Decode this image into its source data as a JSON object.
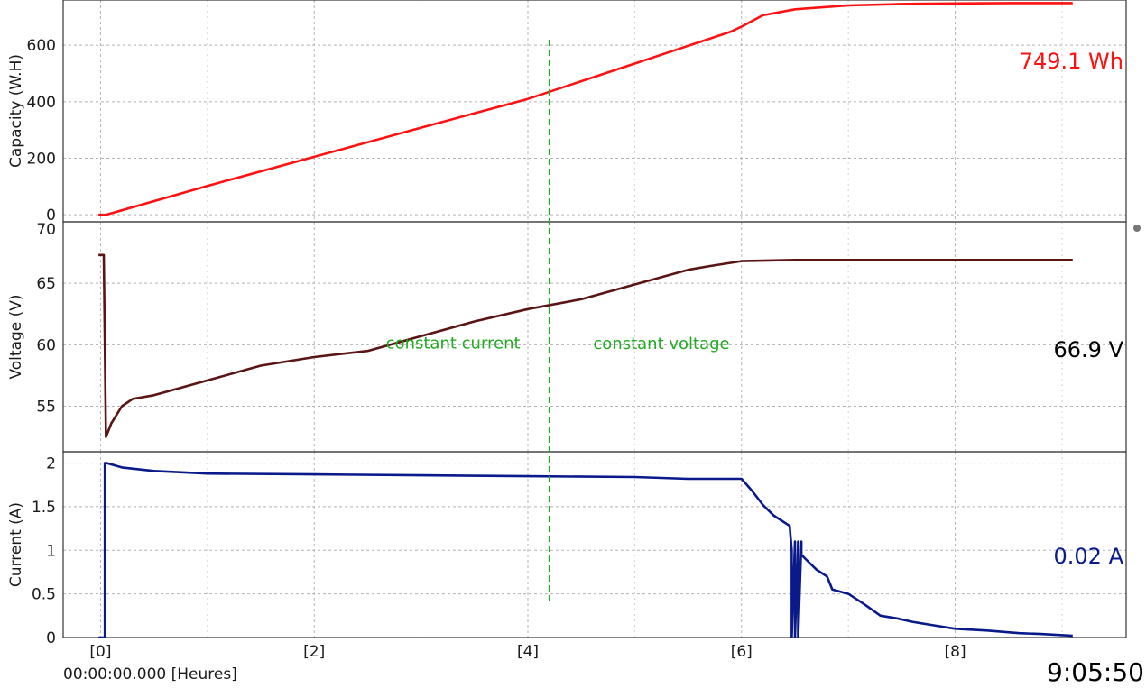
{
  "chart_data": {
    "type": "line",
    "x_range": [
      -0.35,
      9.6
    ],
    "x_ticks": [
      0,
      2,
      4,
      6,
      8
    ],
    "x_tick_labels": [
      "[0]",
      "[2]",
      "[4]",
      "[6]",
      "[8]"
    ],
    "time_origin_label": "00:00:00.000 [Heures]",
    "elapsed_clock": "9:05:50",
    "markers": [
      {
        "x": 4.2,
        "color": "#22aa22",
        "style": "dashed"
      }
    ],
    "annotations": [
      {
        "text": "constant current",
        "x": 3.3,
        "y": 59.7,
        "panel": 1
      },
      {
        "text": "constant voltage",
        "x": 5.25,
        "y": 59.65,
        "panel": 1
      }
    ],
    "panels": [
      {
        "ylabel": "Capacity (W.H)",
        "ylim": [
          -25,
          760
        ],
        "y_ticks": [
          0,
          200,
          400,
          600
        ],
        "grid": true,
        "readout": "749.1 Wh",
        "color": "#ff1111",
        "series": [
          {
            "color": "#ff1111",
            "x": [
              -0.02,
              0.05,
              1,
              2,
              3,
              4,
              5,
              5.9,
              6.0,
              6.2,
              6.5,
              7,
              7.5,
              8,
              8.5,
              9.1
            ],
            "y": [
              0,
              0,
              102,
              205,
              308,
              410,
              535,
              648,
              666,
              706,
              727,
              741,
              746,
              748,
              749,
              749.1
            ]
          }
        ]
      },
      {
        "ylabel": "Voltage (V)",
        "ylim": [
          51.3,
          70
        ],
        "y_ticks": [
          55,
          60,
          65
        ],
        "y_top_label": "70",
        "grid": true,
        "readout": "66.9 V",
        "color": "#000000",
        "series": [
          {
            "color": "#5a1414",
            "x": [
              -0.02,
              0.03,
              0.04,
              0.05,
              0.1,
              0.2,
              0.3,
              0.5,
              1,
              1.5,
              2,
              2.5,
              3,
              3.5,
              4,
              4.5,
              5,
              5.5,
              5.7,
              6.0,
              6.5,
              7,
              8,
              9.1
            ],
            "y": [
              67.3,
              67.3,
              60,
              52.5,
              53.6,
              55.0,
              55.6,
              55.9,
              57.1,
              58.3,
              59.0,
              59.5,
              60.7,
              61.9,
              62.9,
              63.7,
              64.9,
              66.1,
              66.4,
              66.8,
              66.9,
              66.9,
              66.9,
              66.9
            ]
          }
        ]
      },
      {
        "ylabel": "Current (A)",
        "ylim": [
          0,
          2.13
        ],
        "y_ticks": [
          0,
          0.5,
          1,
          1.5,
          2
        ],
        "y_tick_labels": [
          "0",
          "0.5",
          "1",
          "1.5",
          "2"
        ],
        "grid": true,
        "readout": "0.02 A",
        "color": "#0a1a8a",
        "series": [
          {
            "color": "#0a1a8a",
            "x": [
              -0.02,
              0.04,
              0.04,
              0.06,
              0.2,
              0.5,
              1,
              2,
              3,
              4,
              5,
              5.5,
              6.0,
              6.1,
              6.2,
              6.3,
              6.45,
              6.47,
              6.47,
              6.5,
              6.5,
              6.53,
              6.53,
              6.56,
              6.56,
              6.6,
              6.7,
              6.8,
              6.85,
              7.0,
              7.15,
              7.3,
              7.45,
              7.6,
              7.8,
              8.0,
              8.3,
              8.6,
              8.8,
              9.1
            ],
            "y": [
              0,
              0,
              2.0,
              2.0,
              1.95,
              1.91,
              1.88,
              1.87,
              1.86,
              1.85,
              1.84,
              1.82,
              1.82,
              1.68,
              1.52,
              1.4,
              1.28,
              1.0,
              0.0,
              1.1,
              0.0,
              1.1,
              0.0,
              1.1,
              0.95,
              0.9,
              0.78,
              0.7,
              0.55,
              0.5,
              0.38,
              0.25,
              0.22,
              0.18,
              0.14,
              0.1,
              0.08,
              0.05,
              0.04,
              0.02
            ]
          }
        ]
      }
    ]
  }
}
